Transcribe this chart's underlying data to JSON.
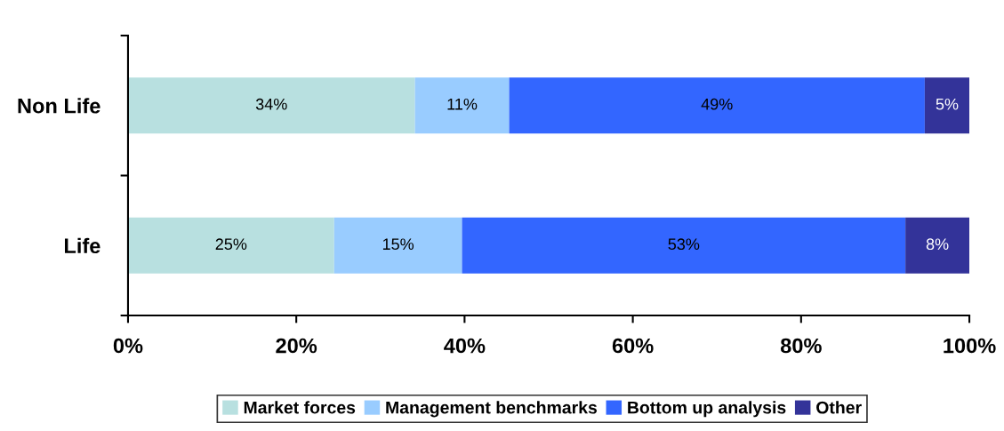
{
  "chart_data": {
    "type": "bar",
    "orientation": "horizontal",
    "stacked": true,
    "categories": [
      "Non Life",
      "Life"
    ],
    "series": [
      {
        "name": "Market forces",
        "color": "#b8e0e0",
        "values": [
          34.1,
          24.5
        ],
        "value_labels": [
          "34%",
          "25%"
        ]
      },
      {
        "name": "Management benchmarks",
        "color": "#99ccff",
        "values": [
          11.2,
          15.2
        ],
        "value_labels": [
          "11%",
          "15%"
        ]
      },
      {
        "name": "Bottom up analysis",
        "color": "#3366ff",
        "values": [
          49.4,
          52.7
        ],
        "value_labels": [
          "49%",
          "53%"
        ]
      },
      {
        "name": "Other",
        "color": "#333399",
        "values": [
          5.3,
          7.6
        ],
        "value_labels": [
          "5%",
          "8%"
        ]
      }
    ],
    "xlim": [
      0,
      100
    ],
    "xticks": [
      {
        "value": 0,
        "label": "0%"
      },
      {
        "value": 20,
        "label": "20%"
      },
      {
        "value": 40,
        "label": "40%"
      },
      {
        "value": 60,
        "label": "60%"
      },
      {
        "value": 80,
        "label": "80%"
      },
      {
        "value": 100,
        "label": "100%"
      }
    ],
    "grid": false,
    "legend": "bottom"
  }
}
